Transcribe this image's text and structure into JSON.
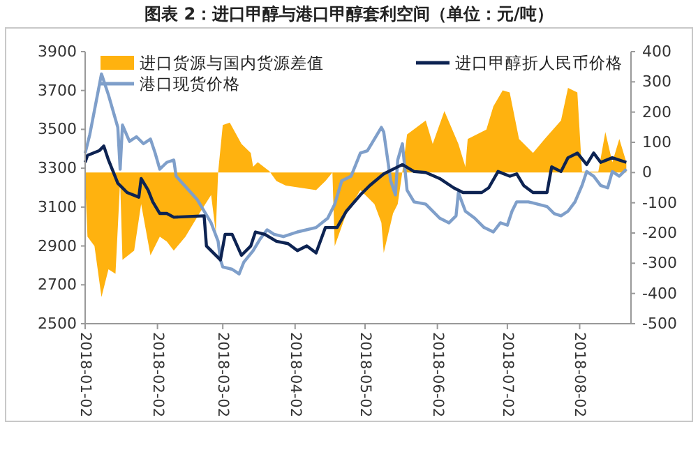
{
  "chart_data": {
    "type": "line",
    "title": "图表 2：进口甲醇与港口甲醇套利空间（单位：元/吨）",
    "xlim": [
      "2018-01-02",
      "2018-08-24"
    ],
    "xticks": [
      {
        "value": "2018-01-02",
        "label": "2018-01-02"
      },
      {
        "value": "2018-02-02",
        "label": "2018-02-02"
      },
      {
        "value": "2018-03-02",
        "label": "2018-03-02"
      },
      {
        "value": "2018-04-02",
        "label": "2018-04-02"
      },
      {
        "value": "2018-05-02",
        "label": "2018-05-02"
      },
      {
        "value": "2018-06-02",
        "label": "2018-06-02"
      },
      {
        "value": "2018-07-02",
        "label": "2018-07-02"
      },
      {
        "value": "2018-08-02",
        "label": "2018-08-02"
      }
    ],
    "ylim": [
      2500,
      3900
    ],
    "yticks": [
      2500,
      2700,
      2900,
      3100,
      3300,
      3500,
      3700,
      3900
    ],
    "y2lim": [
      -500,
      400
    ],
    "y2ticks": [
      -500,
      -400,
      -300,
      -200,
      -100,
      0,
      100,
      200,
      300,
      400
    ],
    "grid": false,
    "legend": "top",
    "marker": "none",
    "line_style": "solid",
    "series": [
      {
        "name": "进口货源与国内货源差值",
        "type": "area",
        "axis": "y2",
        "color": "#ffb20f",
        "x": [
          "2018-01-02",
          "2018-01-03",
          "2018-01-06",
          "2018-01-09",
          "2018-01-12",
          "2018-01-15",
          "2018-01-17",
          "2018-01-18",
          "2018-01-23",
          "2018-01-26",
          "2018-01-30",
          "2018-02-03",
          "2018-02-06",
          "2018-02-09",
          "2018-02-14",
          "2018-02-20",
          "2018-02-25",
          "2018-02-27",
          "2018-02-28",
          "2018-03-02",
          "2018-03-05",
          "2018-03-10",
          "2018-03-14",
          "2018-03-15",
          "2018-03-17",
          "2018-03-22",
          "2018-03-25",
          "2018-03-29",
          "2018-04-05",
          "2018-04-11",
          "2018-04-15",
          "2018-04-18",
          "2018-04-19",
          "2018-04-24",
          "2018-04-30",
          "2018-05-06",
          "2018-05-09",
          "2018-05-10",
          "2018-05-14",
          "2018-05-16",
          "2018-05-18",
          "2018-05-20",
          "2018-05-28",
          "2018-05-31",
          "2018-06-05",
          "2018-06-11",
          "2018-06-14",
          "2018-06-15",
          "2018-06-23",
          "2018-06-26",
          "2018-06-30",
          "2018-07-03",
          "2018-07-07",
          "2018-07-13",
          "2018-07-18",
          "2018-07-25",
          "2018-07-28",
          "2018-08-01",
          "2018-08-03",
          "2018-08-10",
          "2018-08-13",
          "2018-08-16",
          "2018-08-19",
          "2018-08-22"
        ],
        "values": [
          -28,
          -212,
          -243,
          -412,
          -320,
          -335,
          -28,
          -289,
          -258,
          -104,
          -274,
          -212,
          -228,
          -258,
          -212,
          -135,
          -74,
          -197,
          0,
          157,
          165,
          95,
          65,
          19,
          34,
          4,
          -28,
          -43,
          -51,
          -58,
          -28,
          0,
          -243,
          -135,
          -58,
          -104,
          -166,
          -266,
          -135,
          -104,
          3,
          126,
          172,
          95,
          203,
          95,
          19,
          111,
          142,
          219,
          272,
          265,
          111,
          65,
          111,
          172,
          280,
          265,
          3,
          3,
          134,
          34,
          111,
          34
        ]
      },
      {
        "name": "港口现货价格",
        "color": "#7f9fca",
        "x": [
          "2018-01-02",
          "2018-01-04",
          "2018-01-09",
          "2018-01-12",
          "2018-01-16",
          "2018-01-17",
          "2018-01-18",
          "2018-01-21",
          "2018-01-24",
          "2018-01-27",
          "2018-01-30",
          "2018-02-01",
          "2018-02-03",
          "2018-02-06",
          "2018-02-09",
          "2018-02-10",
          "2018-02-19",
          "2018-02-25",
          "2018-02-28",
          "2018-03-01",
          "2018-03-02",
          "2018-03-06",
          "2018-03-09",
          "2018-03-11",
          "2018-03-15",
          "2018-03-18",
          "2018-03-21",
          "2018-03-24",
          "2018-03-28",
          "2018-04-03",
          "2018-04-11",
          "2018-04-16",
          "2018-04-19",
          "2018-04-22",
          "2018-04-26",
          "2018-04-30",
          "2018-05-03",
          "2018-05-06",
          "2018-05-09",
          "2018-05-10",
          "2018-05-13",
          "2018-05-15",
          "2018-05-16",
          "2018-05-18",
          "2018-05-20",
          "2018-05-23",
          "2018-05-28",
          "2018-06-03",
          "2018-06-07",
          "2018-06-10",
          "2018-06-11",
          "2018-06-14",
          "2018-06-18",
          "2018-06-22",
          "2018-06-26",
          "2018-06-29",
          "2018-07-02",
          "2018-07-04",
          "2018-07-06",
          "2018-07-11",
          "2018-07-15",
          "2018-07-19",
          "2018-07-22",
          "2018-07-25",
          "2018-07-28",
          "2018-07-31",
          "2018-08-03",
          "2018-08-05",
          "2018-08-08",
          "2018-08-11",
          "2018-08-14",
          "2018-08-16",
          "2018-08-19",
          "2018-08-22"
        ],
        "values": [
          3378,
          3474,
          3785,
          3677,
          3510,
          3295,
          3522,
          3438,
          3462,
          3426,
          3450,
          3378,
          3295,
          3330,
          3342,
          3259,
          3139,
          3019,
          2924,
          2828,
          2792,
          2780,
          2756,
          2816,
          2876,
          2936,
          2983,
          2960,
          2948,
          2972,
          2995,
          3043,
          3115,
          3235,
          3259,
          3378,
          3390,
          3450,
          3510,
          3486,
          3235,
          3163,
          3342,
          3426,
          3187,
          3127,
          3115,
          3043,
          3019,
          3055,
          3175,
          3079,
          3043,
          2995,
          2972,
          3019,
          3007,
          3079,
          3127,
          3127,
          3115,
          3103,
          3067,
          3055,
          3079,
          3127,
          3211,
          3283,
          3259,
          3211,
          3199,
          3283,
          3259,
          3295
        ]
      },
      {
        "name": "进口甲醇折人民币价格",
        "color": "#0d2352",
        "x": [
          "2018-01-02",
          "2018-01-03",
          "2018-01-08",
          "2018-01-10",
          "2018-01-12",
          "2018-01-16",
          "2018-01-20",
          "2018-01-25",
          "2018-01-26",
          "2018-01-29",
          "2018-01-31",
          "2018-02-03",
          "2018-02-06",
          "2018-02-09",
          "2018-02-22",
          "2018-02-23",
          "2018-03-01",
          "2018-03-03",
          "2018-03-06",
          "2018-03-10",
          "2018-03-14",
          "2018-03-16",
          "2018-03-20",
          "2018-03-25",
          "2018-03-30",
          "2018-04-03",
          "2018-04-07",
          "2018-04-11",
          "2018-04-15",
          "2018-04-20",
          "2018-04-24",
          "2018-04-30",
          "2018-05-04",
          "2018-05-10",
          "2018-05-18",
          "2018-05-23",
          "2018-05-28",
          "2018-06-03",
          "2018-06-09",
          "2018-06-13",
          "2018-06-21",
          "2018-06-24",
          "2018-06-28",
          "2018-07-03",
          "2018-07-06",
          "2018-07-09",
          "2018-07-13",
          "2018-07-19",
          "2018-07-21",
          "2018-07-25",
          "2018-07-28",
          "2018-08-01",
          "2018-08-05",
          "2018-08-08",
          "2018-08-11",
          "2018-08-16",
          "2018-08-22"
        ],
        "values": [
          3330,
          3366,
          3390,
          3414,
          3342,
          3223,
          3175,
          3151,
          3247,
          3187,
          3127,
          3067,
          3067,
          3048,
          3055,
          2900,
          2828,
          2960,
          2960,
          2852,
          2900,
          2972,
          2960,
          2924,
          2912,
          2876,
          2900,
          2864,
          2995,
          2995,
          3079,
          3163,
          3211,
          3271,
          3319,
          3283,
          3278,
          3247,
          3199,
          3175,
          3175,
          3199,
          3283,
          3259,
          3271,
          3211,
          3175,
          3175,
          3307,
          3283,
          3354,
          3378,
          3319,
          3378,
          3330,
          3354,
          3330
        ]
      }
    ]
  }
}
